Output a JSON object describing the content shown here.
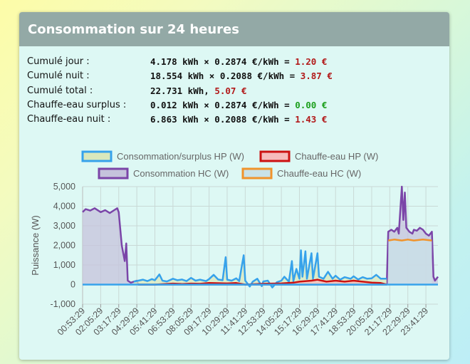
{
  "header": {
    "title": "Consommation sur 24 heures"
  },
  "stats": [
    {
      "label": "Cumulé jour :",
      "formula": "4.178 kWh × 0.2874 €/kWh = ",
      "amount": "1.20 €",
      "color": "#b21a1a"
    },
    {
      "label": "Cumulé nuit :",
      "formula": "18.554 kWh × 0.2088 €/kWh = ",
      "amount": "3.87 €",
      "color": "#b21a1a"
    },
    {
      "label": "Cumulé total :",
      "formula": "22.731 kWh, ",
      "amount": "5.07 €",
      "color": "#b21a1a"
    },
    {
      "label": "Chauffe-eau surplus :",
      "formula": "0.012 kWh × 0.2874 €/kWh = ",
      "amount": "0.00 €",
      "color": "#1ea01e"
    },
    {
      "label": "Chauffe-eau nuit :",
      "formula": "6.863 kWh × 0.2088 €/kWh = ",
      "amount": "1.43 €",
      "color": "#b21a1a"
    }
  ],
  "chart_data": {
    "type": "area",
    "title": "",
    "ylabel": "Puissance (W)",
    "xlabel": "",
    "ylim": [
      -1000,
      5000
    ],
    "yticks": [
      -1000,
      0,
      1000,
      2000,
      3000,
      4000,
      5000
    ],
    "ytick_labels": [
      "-1,000",
      "0",
      "1,000",
      "2,000",
      "3,000",
      "4,000",
      "5,000"
    ],
    "xlim": [
      "00:53:29",
      "00:29:29"
    ],
    "xtick_labels": [
      "00:53:29",
      "02:05:29",
      "03:17:29",
      "04:29:29",
      "05:41:29",
      "06:53:29",
      "08:05:29",
      "09:17:29",
      "10:29:29",
      "11:41:29",
      "12:53:29",
      "14:05:29",
      "15:17:29",
      "16:29:29",
      "17:41:29",
      "18:53:29",
      "20:05:29",
      "21:17:29",
      "22:29:29",
      "23:41:29"
    ],
    "grid": true,
    "legend": "top",
    "series": [
      {
        "name": "Consommation/surplus HP (W)",
        "stroke": "#36a2eb",
        "fill": "#d9e8bc",
        "points": [
          [
            "04:17:29",
            150
          ],
          [
            "04:35:29",
            200
          ],
          [
            "04:53:29",
            250
          ],
          [
            "05:11:29",
            180
          ],
          [
            "05:29:29",
            280
          ],
          [
            "05:41:29",
            220
          ],
          [
            "05:59:29",
            520
          ],
          [
            "06:11:29",
            200
          ],
          [
            "06:29:29",
            160
          ],
          [
            "06:53:29",
            300
          ],
          [
            "07:11:29",
            220
          ],
          [
            "07:29:29",
            260
          ],
          [
            "07:47:29",
            180
          ],
          [
            "08:05:29",
            340
          ],
          [
            "08:23:29",
            200
          ],
          [
            "08:41:29",
            250
          ],
          [
            "09:05:29",
            180
          ],
          [
            "09:17:29",
            280
          ],
          [
            "09:35:29",
            500
          ],
          [
            "09:53:29",
            260
          ],
          [
            "10:11:29",
            220
          ],
          [
            "10:23:29",
            1400
          ],
          [
            "10:29:29",
            250
          ],
          [
            "10:47:29",
            200
          ],
          [
            "11:05:29",
            320
          ],
          [
            "11:17:29",
            180
          ],
          [
            "11:35:29",
            1500
          ],
          [
            "11:41:29",
            200
          ],
          [
            "11:59:29",
            -100
          ],
          [
            "12:11:29",
            150
          ],
          [
            "12:29:29",
            300
          ],
          [
            "12:47:29",
            -80
          ],
          [
            "12:53:29",
            160
          ],
          [
            "13:11:29",
            200
          ],
          [
            "13:29:29",
            -150
          ],
          [
            "13:47:29",
            120
          ],
          [
            "14:05:29",
            200
          ],
          [
            "14:17:29",
            400
          ],
          [
            "14:35:29",
            150
          ],
          [
            "14:47:29",
            1200
          ],
          [
            "14:53:29",
            180
          ],
          [
            "15:05:29",
            800
          ],
          [
            "15:17:29",
            300
          ],
          [
            "15:23:29",
            1750
          ],
          [
            "15:29:29",
            400
          ],
          [
            "15:41:29",
            1700
          ],
          [
            "15:47:29",
            300
          ],
          [
            "16:05:29",
            1600
          ],
          [
            "16:11:29",
            300
          ],
          [
            "16:29:29",
            1600
          ],
          [
            "16:35:29",
            400
          ],
          [
            "16:53:29",
            300
          ],
          [
            "17:11:29",
            650
          ],
          [
            "17:29:29",
            300
          ],
          [
            "17:41:29",
            450
          ],
          [
            "17:59:29",
            250
          ],
          [
            "18:17:29",
            380
          ],
          [
            "18:41:29",
            300
          ],
          [
            "18:53:29",
            420
          ],
          [
            "19:11:29",
            260
          ],
          [
            "19:29:29",
            380
          ],
          [
            "19:47:29",
            300
          ],
          [
            "20:05:29",
            320
          ],
          [
            "20:23:29",
            500
          ],
          [
            "20:41:29",
            300
          ],
          [
            "21:05:29",
            300
          ]
        ]
      },
      {
        "name": "Chauffe-eau HP (W)",
        "stroke": "#cc1111",
        "fill": "#f6bcbc",
        "points": [
          [
            "04:35:29",
            0
          ],
          [
            "05:11:29",
            0
          ],
          [
            "05:41:29",
            0
          ],
          [
            "06:53:29",
            50
          ],
          [
            "07:29:29",
            30
          ],
          [
            "08:05:29",
            50
          ],
          [
            "08:41:29",
            40
          ],
          [
            "09:17:29",
            80
          ],
          [
            "10:29:29",
            60
          ],
          [
            "11:05:29",
            80
          ],
          [
            "11:41:29",
            0
          ],
          [
            "12:53:29",
            40
          ],
          [
            "14:05:29",
            60
          ],
          [
            "14:53:29",
            100
          ],
          [
            "15:17:29",
            150
          ],
          [
            "16:05:29",
            200
          ],
          [
            "16:29:29",
            250
          ],
          [
            "17:05:29",
            150
          ],
          [
            "17:41:29",
            200
          ],
          [
            "18:17:29",
            150
          ],
          [
            "18:53:29",
            200
          ],
          [
            "19:29:29",
            150
          ],
          [
            "20:05:29",
            100
          ],
          [
            "20:41:29",
            80
          ],
          [
            "21:05:29",
            0
          ]
        ]
      },
      {
        "name": "Consommation HC (W)",
        "stroke": "#7b45a8",
        "fill": "#c5c3dc",
        "points": [
          [
            "00:53:29",
            3700
          ],
          [
            "01:05:29",
            3850
          ],
          [
            "01:23:29",
            3780
          ],
          [
            "01:41:29",
            3900
          ],
          [
            "02:05:29",
            3700
          ],
          [
            "02:23:29",
            3800
          ],
          [
            "02:41:29",
            3650
          ],
          [
            "02:59:29",
            3800
          ],
          [
            "03:11:29",
            3900
          ],
          [
            "03:17:29",
            3700
          ],
          [
            "03:29:29",
            2000
          ],
          [
            "03:41:29",
            1200
          ],
          [
            "03:47:29",
            2100
          ],
          [
            "03:53:29",
            200
          ],
          [
            "04:05:29",
            100
          ],
          [
            "04:17:29",
            150
          ],
          [
            "04:29:29",
            200
          ],
          [
            "04:35:29",
            0
          ],
          [
            "21:05:29",
            0
          ],
          [
            "21:11:29",
            2700
          ],
          [
            "21:23:29",
            2800
          ],
          [
            "21:35:29",
            2700
          ],
          [
            "21:47:29",
            2900
          ],
          [
            "21:53:29",
            2600
          ],
          [
            "22:05:29",
            5000
          ],
          [
            "22:11:29",
            3300
          ],
          [
            "22:17:29",
            4700
          ],
          [
            "22:23:29",
            2900
          ],
          [
            "22:35:29",
            2700
          ],
          [
            "22:47:29",
            2600
          ],
          [
            "22:53:29",
            2800
          ],
          [
            "23:05:29",
            2750
          ],
          [
            "23:17:29",
            2900
          ],
          [
            "23:29:29",
            2800
          ],
          [
            "23:41:29",
            2600
          ],
          [
            "23:53:29",
            2500
          ],
          [
            "24:05:29",
            2700
          ],
          [
            "24:11:29",
            400
          ],
          [
            "24:17:29",
            200
          ],
          [
            "24:29:29",
            400
          ]
        ]
      },
      {
        "name": "Chauffe-eau HC (W)",
        "stroke": "#f0932b",
        "fill": "#c9e2e8",
        "points": [
          [
            "21:11:29",
            2250
          ],
          [
            "21:35:29",
            2300
          ],
          [
            "22:05:29",
            2250
          ],
          [
            "22:29:29",
            2300
          ],
          [
            "22:53:29",
            2250
          ],
          [
            "23:29:29",
            2300
          ],
          [
            "24:05:29",
            2250
          ]
        ]
      }
    ]
  }
}
